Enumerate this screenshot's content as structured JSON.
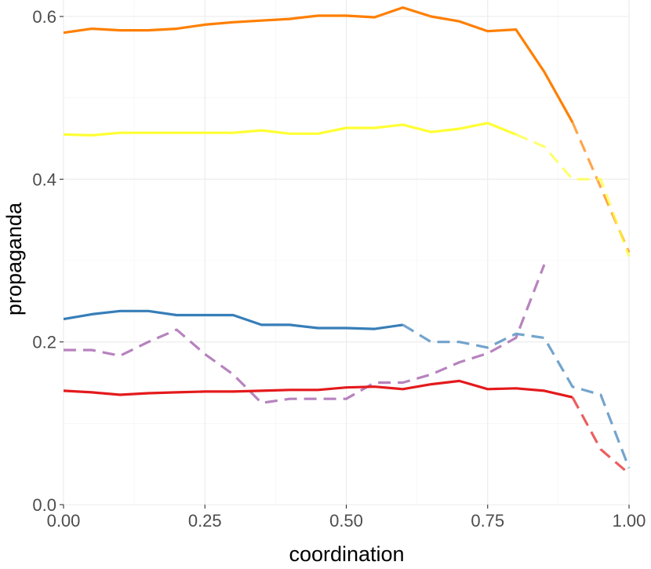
{
  "chart_data": {
    "type": "line",
    "xlabel": "coordination",
    "ylabel": "propaganda",
    "xlim": [
      0,
      1
    ],
    "ylim": [
      0,
      0.6
    ],
    "x_ticks": [
      "0.00",
      "0.25",
      "0.50",
      "0.75",
      "1.00"
    ],
    "y_ticks": [
      "0.0",
      "0.2",
      "0.4",
      "0.6"
    ],
    "grid": true,
    "legend": "none",
    "x": [
      0,
      0.05,
      0.1,
      0.15,
      0.2,
      0.25,
      0.3,
      0.35,
      0.4,
      0.45,
      0.5,
      0.55,
      0.6,
      0.65,
      0.7,
      0.75,
      0.8,
      0.85,
      0.9,
      0.95,
      1.0
    ],
    "series": [
      {
        "color": "#ff7f00",
        "values": [
          0.58,
          0.585,
          0.583,
          0.583,
          0.585,
          0.59,
          0.593,
          0.595,
          0.597,
          0.601,
          0.601,
          0.599,
          0.611,
          0.6,
          0.594,
          0.582,
          0.584,
          0.532,
          0.47,
          0.39,
          0.31
        ],
        "solid_until_x": 0.9
      },
      {
        "color": "#ffff33",
        "values": [
          0.455,
          0.454,
          0.457,
          0.457,
          0.457,
          0.457,
          0.457,
          0.46,
          0.456,
          0.456,
          0.463,
          0.463,
          0.467,
          0.458,
          0.462,
          0.469,
          0.455,
          0.44,
          0.4,
          0.4,
          0.305
        ],
        "solid_until_x": 0.8
      },
      {
        "color": "#377eb8",
        "values": [
          0.228,
          0.234,
          0.238,
          0.238,
          0.233,
          0.233,
          0.233,
          0.221,
          0.221,
          0.217,
          0.217,
          0.216,
          0.221,
          0.2,
          0.2,
          0.193,
          0.21,
          0.205,
          0.145,
          0.135,
          0.045
        ],
        "solid_until_x": 0.6
      },
      {
        "color": "#984ea3",
        "values": [
          0.19,
          0.19,
          0.183,
          0.2,
          0.215,
          0.185,
          0.16,
          0.125,
          0.13,
          0.13,
          0.13,
          0.15,
          0.15,
          0.16,
          0.175,
          0.186,
          0.205,
          0.295,
          null,
          null,
          null
        ],
        "solid_until_x": 0.0
      },
      {
        "color": "#e41a1c",
        "values": [
          0.14,
          0.138,
          0.135,
          0.137,
          0.138,
          0.139,
          0.139,
          0.14,
          0.141,
          0.141,
          0.144,
          0.145,
          0.142,
          0.148,
          0.152,
          0.142,
          0.143,
          0.14,
          0.132,
          0.068,
          0.038
        ],
        "solid_until_x": 0.9
      }
    ]
  }
}
